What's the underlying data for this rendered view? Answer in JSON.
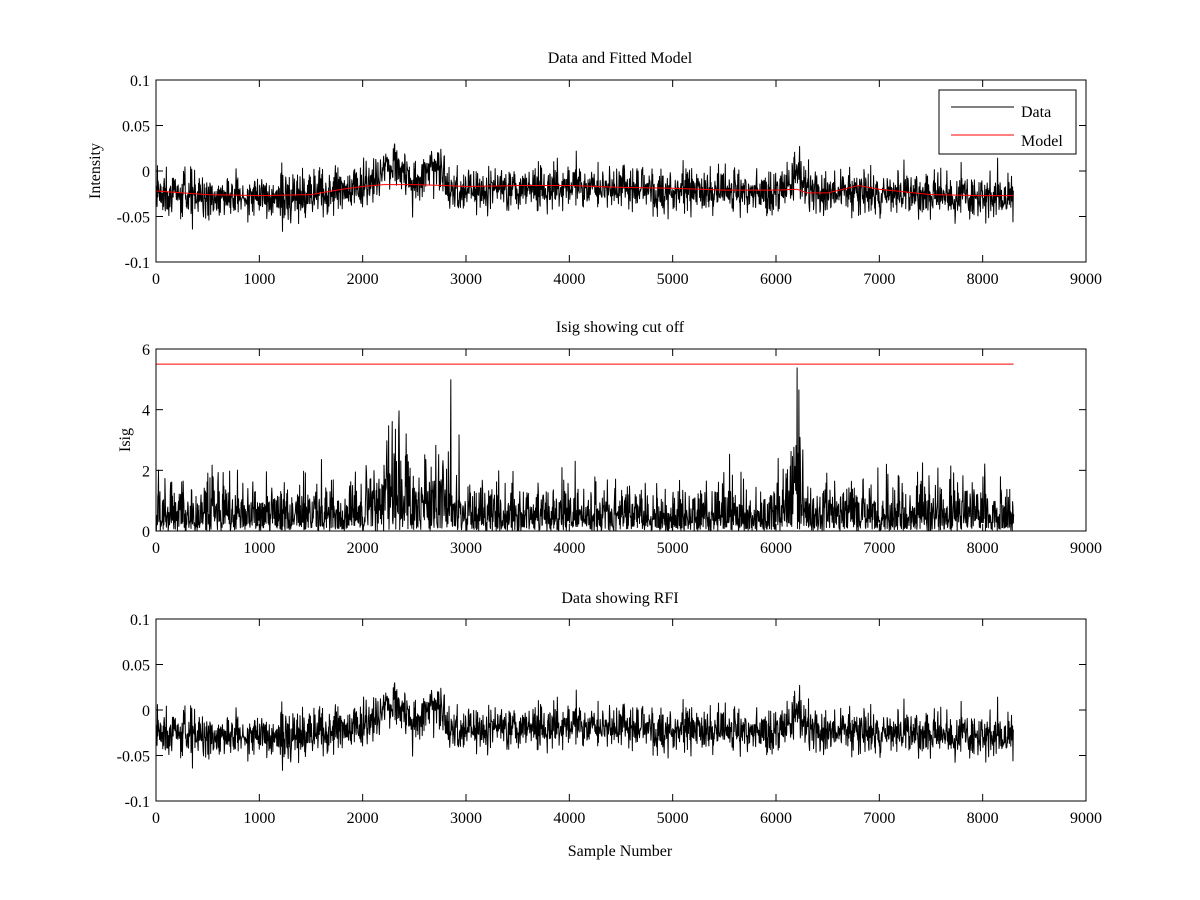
{
  "chart_data": [
    {
      "type": "line",
      "title": "Data and Fitted Model",
      "xlabel": "",
      "ylabel": "Intensity",
      "xlim": [
        0,
        9000
      ],
      "ylim": [
        -0.1,
        0.1
      ],
      "xticks": [
        0,
        1000,
        2000,
        3000,
        4000,
        5000,
        6000,
        7000,
        8000,
        9000
      ],
      "xtick_labels": [
        "0",
        "1000",
        "2000",
        "3000",
        "4000",
        "5000",
        "6000",
        "7000",
        "8000",
        "9000"
      ],
      "yticks": [
        -0.1,
        -0.05,
        0,
        0.05,
        0.1
      ],
      "ytick_labels": [
        "-0.1",
        "-0.05",
        "0",
        "0.05",
        "0.1"
      ],
      "grid": false,
      "legend_position": "top-right",
      "series": [
        {
          "name": "Data",
          "color": "#000000",
          "style": "noisy",
          "x_range": [
            0,
            8300
          ],
          "x": [
            0,
            500,
            1000,
            1500,
            1800,
            2000,
            2150,
            2250,
            2350,
            2450,
            2550,
            2650,
            2700,
            2780,
            2850,
            3000,
            3500,
            4000,
            4500,
            5000,
            5500,
            6000,
            6150,
            6200,
            6250,
            6300,
            6500,
            6800,
            7000,
            7500,
            8000,
            8300
          ],
          "y": [
            -0.025,
            -0.028,
            -0.028,
            -0.027,
            -0.023,
            -0.018,
            -0.005,
            0.01,
            0.005,
            -0.01,
            -0.015,
            0.005,
            0.01,
            0.0,
            -0.022,
            -0.02,
            -0.018,
            -0.017,
            -0.018,
            -0.02,
            -0.022,
            -0.022,
            -0.01,
            0.0,
            -0.01,
            -0.023,
            -0.025,
            -0.022,
            -0.025,
            -0.028,
            -0.028,
            -0.028
          ],
          "noise": 0.012
        },
        {
          "name": "Model",
          "color": "#ff0000",
          "style": "smooth",
          "x": [
            0,
            500,
            1000,
            1500,
            1800,
            2000,
            2200,
            2500,
            2800,
            3000,
            3500,
            4000,
            4500,
            5000,
            5500,
            6000,
            6200,
            6300,
            6500,
            6800,
            7000,
            7500,
            8000,
            8300
          ],
          "y": [
            -0.022,
            -0.026,
            -0.027,
            -0.026,
            -0.02,
            -0.017,
            -0.015,
            -0.015,
            -0.016,
            -0.017,
            -0.016,
            -0.016,
            -0.018,
            -0.019,
            -0.021,
            -0.021,
            -0.02,
            -0.024,
            -0.024,
            -0.016,
            -0.02,
            -0.026,
            -0.027,
            -0.027
          ]
        }
      ]
    },
    {
      "type": "line",
      "title": "Isig showing cut off",
      "xlabel": "",
      "ylabel": "Isig",
      "xlim": [
        0,
        9000
      ],
      "ylim": [
        0,
        6
      ],
      "xticks": [
        0,
        1000,
        2000,
        3000,
        4000,
        5000,
        6000,
        7000,
        8000,
        9000
      ],
      "xtick_labels": [
        "0",
        "1000",
        "2000",
        "3000",
        "4000",
        "5000",
        "6000",
        "7000",
        "8000",
        "9000"
      ],
      "yticks": [
        0,
        2,
        4,
        6
      ],
      "ytick_labels": [
        "0",
        "2",
        "4",
        "6"
      ],
      "grid": false,
      "series": [
        {
          "color": "#000000",
          "style": "abs-noise",
          "x_range": [
            0,
            8300
          ],
          "x": [
            0,
            1000,
            2000,
            2150,
            2250,
            2400,
            2550,
            2700,
            2800,
            3000,
            4000,
            5000,
            6000,
            6150,
            6200,
            6280,
            6300,
            7000,
            8000,
            8300
          ],
          "y": [
            0.8,
            0.8,
            0.8,
            1.4,
            2.2,
            1.4,
            0.9,
            1.8,
            1.2,
            0.8,
            0.8,
            0.8,
            0.8,
            1.8,
            2.6,
            1.2,
            0.8,
            0.8,
            0.8,
            0.8
          ],
          "noise": 0.8
        },
        {
          "color": "#ff0000",
          "style": "smooth",
          "x": [
            0,
            8300
          ],
          "y": [
            5.5,
            5.5
          ]
        }
      ]
    },
    {
      "type": "line",
      "title": "Data showing RFI",
      "xlabel": "Sample Number",
      "ylabel": "",
      "xlim": [
        0,
        9000
      ],
      "ylim": [
        -0.1,
        0.1
      ],
      "xticks": [
        0,
        1000,
        2000,
        3000,
        4000,
        5000,
        6000,
        7000,
        8000,
        9000
      ],
      "xtick_labels": [
        "0",
        "1000",
        "2000",
        "3000",
        "4000",
        "5000",
        "6000",
        "7000",
        "8000",
        "9000"
      ],
      "yticks": [
        -0.1,
        -0.05,
        0,
        0.05,
        0.1
      ],
      "ytick_labels": [
        "-0.1",
        "-0.05",
        "0",
        "0.05",
        "0.1"
      ],
      "grid": false,
      "series": [
        {
          "color": "#000000",
          "style": "noisy",
          "x_range": [
            0,
            8300
          ],
          "x": [
            0,
            500,
            1000,
            1500,
            1800,
            2000,
            2150,
            2250,
            2350,
            2450,
            2550,
            2650,
            2700,
            2780,
            2850,
            3000,
            3500,
            4000,
            4500,
            5000,
            5500,
            6000,
            6150,
            6200,
            6250,
            6300,
            6500,
            6800,
            7000,
            7500,
            8000,
            8300
          ],
          "y": [
            -0.025,
            -0.028,
            -0.028,
            -0.027,
            -0.023,
            -0.018,
            -0.005,
            0.01,
            0.005,
            -0.01,
            -0.015,
            0.005,
            0.01,
            0.0,
            -0.022,
            -0.02,
            -0.018,
            -0.017,
            -0.018,
            -0.02,
            -0.022,
            -0.022,
            -0.01,
            0.0,
            -0.01,
            -0.023,
            -0.025,
            -0.022,
            -0.025,
            -0.028,
            -0.028,
            -0.028
          ],
          "noise": 0.012
        }
      ]
    }
  ]
}
